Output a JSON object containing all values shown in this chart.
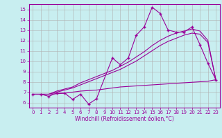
{
  "x": [
    0,
    1,
    2,
    3,
    4,
    5,
    6,
    7,
    8,
    9,
    10,
    11,
    12,
    13,
    14,
    15,
    16,
    17,
    18,
    19,
    20,
    21,
    22,
    23
  ],
  "line1": [
    6.8,
    6.8,
    6.6,
    6.9,
    6.9,
    6.3,
    6.8,
    5.85,
    6.35,
    null,
    10.3,
    9.65,
    10.3,
    12.5,
    13.3,
    15.2,
    14.6,
    13.0,
    12.8,
    12.8,
    13.3,
    11.6,
    9.8,
    8.2
  ],
  "line2": [
    6.8,
    6.8,
    6.8,
    7.1,
    7.3,
    7.5,
    7.9,
    8.2,
    8.5,
    8.8,
    9.1,
    9.5,
    9.9,
    10.4,
    10.9,
    11.5,
    12.0,
    12.4,
    12.7,
    12.9,
    13.1,
    12.9,
    12.0,
    8.2
  ],
  "line3": [
    6.8,
    6.8,
    6.8,
    7.0,
    7.2,
    7.4,
    7.7,
    8.0,
    8.3,
    8.6,
    8.9,
    9.2,
    9.6,
    10.0,
    10.5,
    11.0,
    11.5,
    11.9,
    12.2,
    12.5,
    12.7,
    12.6,
    11.8,
    8.2
  ],
  "line4": [
    6.8,
    6.8,
    6.8,
    6.85,
    6.9,
    7.0,
    7.1,
    7.15,
    7.2,
    7.3,
    7.4,
    7.5,
    7.55,
    7.6,
    7.65,
    7.7,
    7.75,
    7.8,
    7.85,
    7.9,
    7.95,
    8.0,
    8.05,
    8.2
  ],
  "line_color": "#990099",
  "bg_color": "#c8eef0",
  "grid_color": "#b0b0b0",
  "xlabel": "Windchill (Refroidissement éolien,°C)",
  "ylim": [
    5.5,
    15.5
  ],
  "xlim": [
    -0.5,
    23.5
  ],
  "yticks": [
    6,
    7,
    8,
    9,
    10,
    11,
    12,
    13,
    14,
    15
  ],
  "xticks": [
    0,
    1,
    2,
    3,
    4,
    5,
    6,
    7,
    8,
    9,
    10,
    11,
    12,
    13,
    14,
    15,
    16,
    17,
    18,
    19,
    20,
    21,
    22,
    23
  ]
}
